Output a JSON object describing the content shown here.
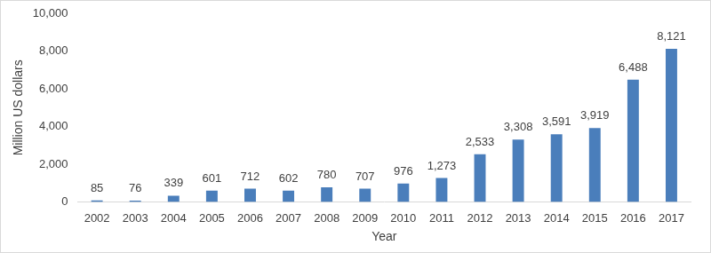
{
  "chart_data": {
    "type": "bar",
    "categories": [
      "2002",
      "2003",
      "2004",
      "2005",
      "2006",
      "2007",
      "2008",
      "2009",
      "2010",
      "2011",
      "2012",
      "2013",
      "2014",
      "2015",
      "2016",
      "2017"
    ],
    "values": [
      85,
      76,
      339,
      601,
      712,
      602,
      780,
      707,
      976,
      1273,
      2533,
      3308,
      3591,
      3919,
      6488,
      8121
    ],
    "value_labels": [
      "85",
      "76",
      "339",
      "601",
      "712",
      "602",
      "780",
      "707",
      "976",
      "1,273",
      "2,533",
      "3,308",
      "3,591",
      "3,919",
      "6,488",
      "8,121"
    ],
    "color": "#4a7ebb",
    "xlabel": "Year",
    "ylabel": "Million US dollars",
    "ylim": [
      0,
      10000
    ],
    "yticks": [
      0,
      {
        "value": 2000,
        "label": "2,000"
      },
      {
        "value": 4000,
        "label": "4,000"
      },
      {
        "value": 6000,
        "label": "6,000"
      },
      {
        "value": 8000,
        "label": "8,000"
      },
      {
        "value": 10000,
        "label": "10,000"
      }
    ],
    "grid": false,
    "data_labels": true
  }
}
